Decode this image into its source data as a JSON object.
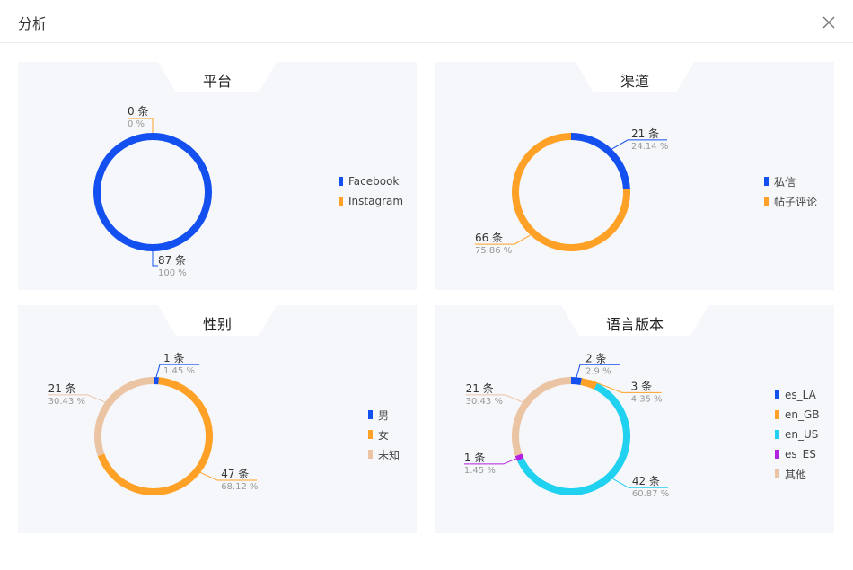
{
  "modal": {
    "title": "分析",
    "close_icon": "close-icon"
  },
  "colors": {
    "blue": "#1450f0",
    "orange": "#ffa126",
    "cyan": "#20d1f0",
    "purple": "#b420e0",
    "beige": "#ebc4a4"
  },
  "chart_data": [
    {
      "type": "pie",
      "title": "平台",
      "categories": [
        "Facebook",
        "Instagram"
      ],
      "values": [
        87,
        0
      ],
      "labels": [
        {
          "count": "87 条",
          "pct": "100 %"
        },
        {
          "count": "0 条",
          "pct": "0 %"
        }
      ],
      "colors": [
        "#1450f0",
        "#ffa126"
      ],
      "legend": "right"
    },
    {
      "type": "pie",
      "title": "渠道",
      "categories": [
        "私信",
        "帖子评论"
      ],
      "values": [
        21,
        66
      ],
      "labels": [
        {
          "count": "21 条",
          "pct": "24.14 %"
        },
        {
          "count": "66 条",
          "pct": "75.86 %"
        }
      ],
      "colors": [
        "#1450f0",
        "#ffa126"
      ],
      "legend": "right"
    },
    {
      "type": "pie",
      "title": "性别",
      "categories": [
        "男",
        "女",
        "未知"
      ],
      "values": [
        1,
        47,
        21
      ],
      "labels": [
        {
          "count": "1 条",
          "pct": "1.45 %"
        },
        {
          "count": "47 条",
          "pct": "68.12 %"
        },
        {
          "count": "21 条",
          "pct": "30.43 %"
        }
      ],
      "colors": [
        "#1450f0",
        "#ffa126",
        "#ebc4a4"
      ],
      "legend": "right"
    },
    {
      "type": "pie",
      "title": "语言版本",
      "categories": [
        "es_LA",
        "en_GB",
        "en_US",
        "es_ES",
        "其他"
      ],
      "values": [
        2,
        3,
        42,
        1,
        21
      ],
      "labels": [
        {
          "count": "2 条",
          "pct": "2.9 %"
        },
        {
          "count": "3 条",
          "pct": "4.35 %"
        },
        {
          "count": "42 条",
          "pct": "60.87 %"
        },
        {
          "count": "1 条",
          "pct": "1.45 %"
        },
        {
          "count": "21 条",
          "pct": "30.43 %"
        }
      ],
      "colors": [
        "#1450f0",
        "#ffa126",
        "#20d1f0",
        "#b420e0",
        "#ebc4a4"
      ],
      "legend": "right"
    }
  ]
}
